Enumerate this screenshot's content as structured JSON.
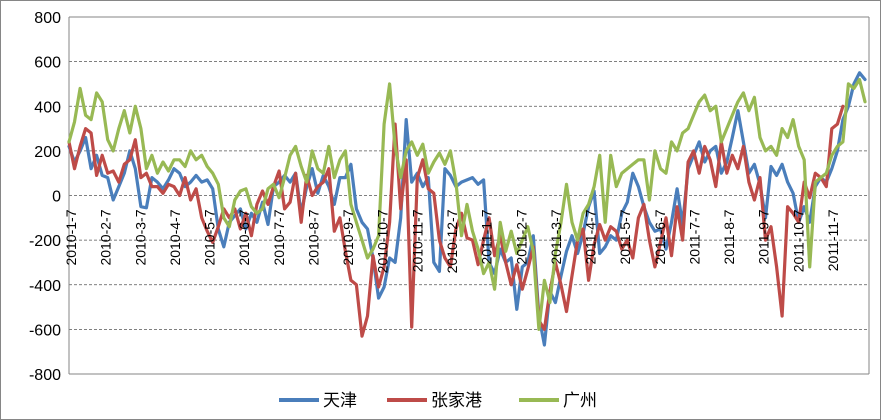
{
  "chart_data": {
    "type": "line",
    "title": "",
    "xlabel": "",
    "ylabel": "",
    "ylim": [
      -800,
      800
    ],
    "yticks": [
      -800,
      -600,
      -400,
      -200,
      0,
      200,
      400,
      600,
      800
    ],
    "grid": "horizontal dashed",
    "legend_position": "bottom",
    "x_tick_labels": [
      "2010-1-7",
      "2010-2-7",
      "2010-3-7",
      "2010-4-7",
      "2010-5-7",
      "2010-6-7",
      "2010-7-7",
      "2010-8-7",
      "2010-9-7",
      "2010-10-7",
      "2010-11-7",
      "2010-12-7",
      "2011-1-7",
      "2011-2-7",
      "2011-3-7",
      "2011-4-7",
      "2011-5-7",
      "2011-6-7",
      "2011-7-7",
      "2011-8-7",
      "2011-9-7",
      "2011-10-7",
      "2011-11-7"
    ],
    "series": [
      {
        "name": "天津",
        "color": "#4a7ebb",
        "values": [
          220,
          150,
          200,
          260,
          120,
          180,
          90,
          80,
          -20,
          40,
          100,
          200,
          120,
          -50,
          -55,
          80,
          60,
          30,
          70,
          120,
          100,
          40,
          60,
          90,
          60,
          70,
          30,
          -150,
          -230,
          -120,
          -90,
          -60,
          -150,
          -80,
          -120,
          -30,
          -130,
          40,
          60,
          90,
          60,
          100,
          -80,
          40,
          120,
          10,
          90,
          40,
          -40,
          80,
          80,
          140,
          -60,
          -120,
          -150,
          -280,
          -460,
          -410,
          -280,
          -300,
          -100,
          340,
          60,
          100,
          40,
          80,
          -300,
          -340,
          120,
          90,
          40,
          60,
          70,
          80,
          50,
          70,
          -300,
          -350,
          -240,
          -300,
          -280,
          -510,
          -320,
          -300,
          -180,
          -540,
          -670,
          -430,
          -480,
          -360,
          -250,
          -180,
          -260,
          -170,
          -50,
          20,
          -260,
          -230,
          -180,
          -200,
          -80,
          -30,
          100,
          40,
          -50,
          -120,
          -160,
          -150,
          -240,
          -120,
          30,
          -130,
          120,
          180,
          240,
          150,
          200,
          220,
          100,
          150,
          260,
          380,
          240,
          100,
          140,
          50,
          -100,
          130,
          90,
          140,
          60,
          10,
          -120,
          -50,
          -120,
          40,
          80,
          60,
          120,
          200,
          340,
          400,
          500,
          550,
          520
        ]
      },
      {
        "name": "张家港",
        "color": "#be4b48",
        "values": [
          240,
          120,
          220,
          300,
          280,
          90,
          180,
          100,
          110,
          60,
          140,
          160,
          250,
          80,
          100,
          40,
          40,
          10,
          50,
          40,
          0,
          80,
          -20,
          30,
          -100,
          -160,
          -210,
          -140,
          -60,
          -100,
          -60,
          -150,
          -80,
          -180,
          -40,
          20,
          -40,
          40,
          110,
          -60,
          -30,
          100,
          -120,
          90,
          0,
          40,
          60,
          120,
          -160,
          -100,
          -250,
          -380,
          -400,
          -630,
          -540,
          -270,
          -410,
          -320,
          -120,
          320,
          -60,
          160,
          -590,
          80,
          160,
          30,
          10,
          -200,
          -280,
          -320,
          -150,
          -80,
          -190,
          -200,
          -310,
          -200,
          -100,
          -270,
          -180,
          -300,
          -400,
          -310,
          -420,
          -330,
          -230,
          -560,
          -600,
          -430,
          -300,
          -400,
          -520,
          -360,
          -200,
          -150,
          -380,
          -220,
          -130,
          -200,
          -140,
          -160,
          -240,
          -200,
          -280,
          -100,
          -40,
          -200,
          -320,
          -210,
          -100,
          -270,
          -50,
          -200,
          150,
          200,
          100,
          220,
          160,
          40,
          240,
          100,
          180,
          120,
          220,
          60,
          -20,
          80,
          -200,
          -140,
          -320,
          -540,
          -50,
          -80,
          -120,
          60,
          -10,
          100,
          80,
          40,
          300,
          320,
          400
        ]
      },
      {
        "name": "广州",
        "color": "#98b954",
        "values": [
          240,
          330,
          480,
          360,
          340,
          460,
          420,
          250,
          200,
          300,
          380,
          280,
          400,
          300,
          120,
          180,
          100,
          150,
          110,
          160,
          160,
          130,
          200,
          160,
          180,
          130,
          100,
          50,
          -100,
          -140,
          -20,
          20,
          30,
          -50,
          -80,
          -60,
          30,
          50,
          -10,
          80,
          180,
          220,
          130,
          60,
          200,
          120,
          100,
          220,
          80,
          160,
          200,
          -40,
          -120,
          -200,
          -280,
          -240,
          -180,
          320,
          500,
          220,
          80,
          200,
          240,
          180,
          230,
          100,
          150,
          190,
          140,
          200,
          60,
          -180,
          -40,
          -160,
          -240,
          -350,
          -300,
          -420,
          -120,
          -250,
          -160,
          -260,
          -200,
          -140,
          -250,
          -600,
          -380,
          -480,
          -260,
          -120,
          50,
          -120,
          -200,
          -80,
          -40,
          40,
          180,
          -120,
          180,
          40,
          100,
          120,
          140,
          160,
          160,
          -20,
          200,
          120,
          100,
          240,
          200,
          280,
          300,
          360,
          420,
          450,
          380,
          400,
          240,
          300,
          360,
          420,
          460,
          380,
          440,
          260,
          200,
          220,
          180,
          300,
          260,
          340,
          220,
          160,
          -320,
          60,
          80,
          100,
          180,
          220,
          240,
          500,
          480,
          520,
          420
        ]
      }
    ]
  },
  "legend": {
    "items": [
      "天津",
      "张家港",
      "广州"
    ]
  }
}
